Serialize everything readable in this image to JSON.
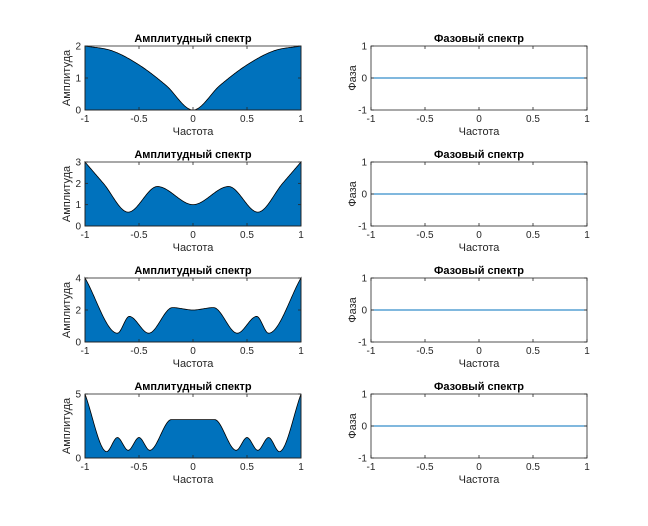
{
  "chart_data": [
    {
      "type": "area",
      "title": "Амплитудный спектр",
      "xlabel": "Частота",
      "ylabel": "Амплитуда",
      "xlim": [
        -1,
        1
      ],
      "ylim": [
        0,
        2
      ],
      "xticks": [
        "-1",
        "-0.5",
        "0",
        "0.5",
        "1"
      ],
      "yticks": [
        "0",
        "1",
        "2"
      ],
      "fill_color": "#0072BD",
      "x": [
        -1,
        -0.75,
        -0.5,
        -0.25,
        0,
        0.25,
        0.5,
        0.75,
        1
      ],
      "y": [
        2.0,
        1.85,
        1.41,
        0.77,
        0.0,
        0.77,
        1.41,
        1.85,
        2.0
      ]
    },
    {
      "type": "line",
      "title": "Фазовый спектр",
      "xlabel": "Частота",
      "ylabel": "Фаза",
      "xlim": [
        -1,
        1
      ],
      "ylim": [
        -1,
        1
      ],
      "xticks": [
        "-1",
        "-0.5",
        "0",
        "0.5",
        "1"
      ],
      "yticks": [
        "-1",
        "0",
        "1"
      ],
      "line_color": "#0072BD",
      "x": [
        -1,
        1
      ],
      "y": [
        0,
        0
      ]
    },
    {
      "type": "area",
      "title": "Амплитудный спектр",
      "xlabel": "Частота",
      "ylabel": "Амплитуда",
      "xlim": [
        -1,
        1
      ],
      "ylim": [
        0,
        3
      ],
      "xticks": [
        "-1",
        "-0.5",
        "0",
        "0.5",
        "1"
      ],
      "yticks": [
        "0",
        "1",
        "2",
        "3"
      ],
      "fill_color": "#0072BD",
      "x": [
        -1,
        -0.83,
        -0.6,
        -0.33,
        0,
        0.33,
        0.6,
        0.83,
        1
      ],
      "y": [
        3.0,
        2.0,
        0.65,
        1.85,
        1.0,
        1.85,
        0.65,
        2.0,
        3.0
      ]
    },
    {
      "type": "line",
      "title": "Фазовый спектр",
      "xlabel": "Частота",
      "ylabel": "Фаза",
      "xlim": [
        -1,
        1
      ],
      "ylim": [
        -1,
        1
      ],
      "xticks": [
        "-1",
        "-0.5",
        "0",
        "0.5",
        "1"
      ],
      "yticks": [
        "-1",
        "0",
        "1"
      ],
      "line_color": "#0072BD",
      "x": [
        -1,
        1
      ],
      "y": [
        0,
        0
      ]
    },
    {
      "type": "area",
      "title": "Амплитудный спектр",
      "xlabel": "Частота",
      "ylabel": "Амплитуда",
      "xlim": [
        -1,
        1
      ],
      "ylim": [
        0,
        4
      ],
      "xticks": [
        "-1",
        "-0.5",
        "0",
        "0.5",
        "1"
      ],
      "yticks": [
        "0",
        "2",
        "4"
      ],
      "fill_color": "#0072BD",
      "x": [
        -1,
        -0.7,
        -0.59,
        -0.41,
        -0.19,
        0,
        0.19,
        0.41,
        0.59,
        0.7,
        1
      ],
      "y": [
        4.0,
        0.55,
        1.6,
        0.55,
        2.15,
        2.0,
        2.15,
        0.55,
        1.6,
        0.55,
        4.0
      ]
    },
    {
      "type": "line",
      "title": "Фазовый спектр",
      "xlabel": "Частота",
      "ylabel": "Фаза",
      "xlim": [
        -1,
        1
      ],
      "ylim": [
        -1,
        1
      ],
      "xticks": [
        "-1",
        "-0.5",
        "0",
        "0.5",
        "1"
      ],
      "yticks": [
        "-1",
        "0",
        "1"
      ],
      "line_color": "#0072BD",
      "x": [
        -1,
        1
      ],
      "y": [
        0,
        0
      ]
    },
    {
      "type": "area",
      "title": "Амплитудный спектр",
      "xlabel": "Частота",
      "ylabel": "Амплитуда",
      "xlim": [
        -1,
        1
      ],
      "ylim": [
        0,
        5
      ],
      "xticks": [
        "-1",
        "-0.5",
        "0",
        "0.5",
        "1"
      ],
      "yticks": [
        "0",
        "5"
      ],
      "fill_color": "#0072BD",
      "x": [
        -1,
        -0.8,
        -0.7,
        -0.6,
        -0.5,
        -0.4,
        -0.2,
        0,
        0.2,
        0.4,
        0.5,
        0.6,
        0.7,
        0.8,
        1
      ],
      "y": [
        5.0,
        0.5,
        1.6,
        0.6,
        1.6,
        0.6,
        3.0,
        3.0,
        3.0,
        0.6,
        1.6,
        0.6,
        1.6,
        0.5,
        5.0
      ]
    },
    {
      "type": "line",
      "title": "Фазовый спектр",
      "xlabel": "Частота",
      "ylabel": "Фаза",
      "xlim": [
        -1,
        1
      ],
      "ylim": [
        -1,
        1
      ],
      "xticks": [
        "-1",
        "-0.5",
        "0",
        "0.5",
        "1"
      ],
      "yticks": [
        "-1",
        "0",
        "1"
      ],
      "line_color": "#0072BD",
      "x": [
        -1,
        1
      ],
      "y": [
        0,
        0
      ]
    }
  ]
}
